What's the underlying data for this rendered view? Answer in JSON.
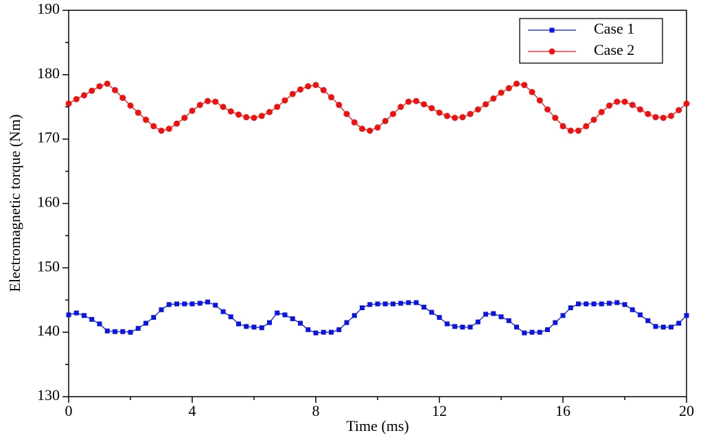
{
  "chart_data": {
    "type": "line",
    "x_label": "Time (ms)",
    "y_label": "Electromagnetic torque (Nm)",
    "x": [
      0,
      0.25,
      0.5,
      0.75,
      1,
      1.25,
      1.5,
      1.75,
      2,
      2.25,
      2.5,
      2.75,
      3,
      3.25,
      3.5,
      3.75,
      4,
      4.25,
      4.5,
      4.75,
      5,
      5.25,
      5.5,
      5.75,
      6,
      6.25,
      6.5,
      6.75,
      7,
      7.25,
      7.5,
      7.75,
      8,
      8.25,
      8.5,
      8.75,
      9,
      9.25,
      9.5,
      9.75,
      10,
      10.25,
      10.5,
      10.75,
      11,
      11.25,
      11.5,
      11.75,
      12,
      12.25,
      12.5,
      12.75,
      13,
      13.25,
      13.5,
      13.75,
      14,
      14.25,
      14.5,
      14.75,
      15,
      15.25,
      15.5,
      15.75,
      16,
      16.25,
      16.5,
      16.75,
      17,
      17.25,
      17.5,
      17.75,
      18,
      18.25,
      18.5,
      18.75,
      19,
      19.25,
      19.5,
      19.75,
      20
    ],
    "series": [
      {
        "name": "Case 1",
        "color": "#0a14e6",
        "marker": "square",
        "values": [
          142.7,
          143.0,
          142.6,
          142.0,
          141.3,
          140.2,
          140.1,
          140.1,
          140.0,
          140.6,
          141.4,
          142.3,
          143.5,
          144.3,
          144.4,
          144.4,
          144.4,
          144.5,
          144.7,
          144.2,
          143.2,
          142.4,
          141.3,
          140.9,
          140.8,
          140.7,
          141.5,
          143.0,
          142.7,
          142.1,
          141.4,
          140.4,
          139.9,
          140.0,
          140.0,
          140.4,
          141.5,
          142.6,
          143.8,
          144.3,
          144.4,
          144.4,
          144.4,
          144.5,
          144.6,
          144.6,
          143.9,
          143.1,
          142.3,
          141.3,
          140.9,
          140.8,
          140.8,
          141.6,
          142.8,
          142.9,
          142.4,
          141.8,
          140.8,
          139.9,
          140.0,
          140.0,
          140.4,
          141.5,
          142.6,
          143.8,
          144.4,
          144.4,
          144.4,
          144.4,
          144.5,
          144.6,
          144.3,
          143.5,
          142.7,
          141.8,
          140.9,
          140.8,
          140.8,
          141.4,
          142.6
        ]
      },
      {
        "name": "Case 2",
        "color": "#f01010",
        "marker": "circle",
        "values": [
          175.5,
          176.2,
          176.8,
          177.5,
          178.2,
          178.6,
          177.6,
          176.4,
          175.2,
          174.1,
          173.0,
          172.0,
          171.3,
          171.6,
          172.4,
          173.3,
          174.4,
          175.3,
          175.9,
          175.8,
          175.0,
          174.3,
          173.8,
          173.4,
          173.3,
          173.6,
          174.2,
          175.0,
          176.0,
          177.0,
          177.7,
          178.2,
          178.4,
          177.6,
          176.5,
          175.3,
          173.9,
          172.6,
          171.6,
          171.3,
          171.8,
          172.8,
          173.9,
          175.0,
          175.8,
          175.9,
          175.4,
          174.8,
          174.1,
          173.6,
          173.3,
          173.4,
          173.9,
          174.6,
          175.4,
          176.3,
          177.2,
          177.9,
          178.6,
          178.4,
          177.3,
          176.0,
          174.6,
          173.3,
          172.0,
          171.3,
          171.3,
          172.0,
          173.0,
          174.2,
          175.2,
          175.8,
          175.8,
          175.3,
          174.6,
          173.9,
          173.4,
          173.3,
          173.6,
          174.5,
          175.5
        ]
      }
    ],
    "xlim": [
      0,
      20
    ],
    "xticks": [
      0,
      4,
      8,
      12,
      16,
      20
    ],
    "xminor_ticks": [
      2,
      6,
      10,
      14,
      18
    ],
    "ylim": [
      130,
      190
    ],
    "yticks": [
      130,
      140,
      150,
      160,
      170,
      180,
      190
    ],
    "yminor_ticks": [
      135,
      145,
      155,
      165,
      175,
      185
    ],
    "legend": "upper right",
    "grid": false
  }
}
